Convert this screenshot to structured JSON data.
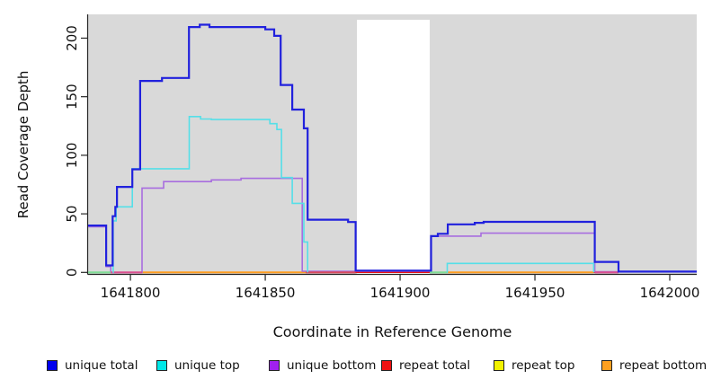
{
  "figure": {
    "background": "#ffffff",
    "panel_color": "#d9d9d9",
    "axis_color": "#262626",
    "text_color": "#111111"
  },
  "chart_data": {
    "type": "line",
    "subtype": "step-coverage",
    "title": "",
    "xlabel": "Coordinate in Reference Genome",
    "ylabel": "Read Coverage Depth",
    "xlim": [
      1641784.3,
      1642010
    ],
    "ylim": [
      -1.69,
      220.3
    ],
    "x_ticks": [
      1641800,
      1641850,
      1641900,
      1641950,
      1642000
    ],
    "y_ticks": [
      0,
      50,
      100,
      150,
      200
    ],
    "grid": false,
    "legend_position": "bottom",
    "gap_band": {
      "from": 1641884,
      "to": 1641911,
      "color": "#ffffff"
    },
    "series": [
      {
        "name": "repeat total",
        "color": "#ee1111",
        "width": 1.5,
        "segments": [
          [
            [
              1641784.3,
              0
            ],
            [
              1641981,
              0
            ]
          ]
        ]
      },
      {
        "name": "repeat top",
        "color": "#f2f200",
        "width": 1.5,
        "segments": [
          [
            [
              1641804.3,
              0
            ],
            [
              1641865,
              0
            ]
          ],
          [
            [
              1641917.3,
              0
            ],
            [
              1641971.8,
              0
            ]
          ]
        ]
      },
      {
        "name": "repeat bottom",
        "color": "#ff9d20",
        "width": 2,
        "segments": [
          [
            [
              1641804.3,
              0
            ],
            [
              1641865,
              0
            ]
          ],
          [
            [
              1641917.3,
              0
            ],
            [
              1641971.8,
              0
            ]
          ]
        ]
      },
      {
        "name": "unique bottom",
        "color": "#a86ddf",
        "width": 1.6,
        "segments": [
          [
            [
              1641784.3,
              39
            ],
            [
              1641791,
              5
            ],
            [
              1641792.7,
              0
            ],
            [
              1641804.3,
              72
            ],
            [
              1641812.3,
              77.5
            ],
            [
              1641830,
              79
            ],
            [
              1641841,
              80.3
            ],
            [
              1641863.7,
              1
            ],
            [
              1641911.5,
              31
            ],
            [
              1641930,
              33.5
            ],
            [
              1641972.2,
              0.5
            ],
            [
              1642010,
              0.5
            ]
          ]
        ]
      },
      {
        "name": "unique top",
        "color": "#55dfe8",
        "width": 1.6,
        "segments": [
          [
            [
              1641793.4,
              0
            ],
            [
              1641793.6,
              44
            ],
            [
              1641794.7,
              56
            ],
            [
              1641800.7,
              88.5
            ],
            [
              1641821.8,
              133
            ],
            [
              1641826,
              131
            ],
            [
              1641830,
              130.5
            ],
            [
              1641851.7,
              127
            ],
            [
              1641854.3,
              122
            ],
            [
              1641856,
              81
            ],
            [
              1641860,
              59
            ],
            [
              1641864.3,
              26
            ],
            [
              1641865.7,
              0
            ]
          ],
          [
            [
              1641917.3,
              0
            ],
            [
              1641917.5,
              7.7
            ],
            [
              1641971.8,
              0
            ]
          ]
        ]
      },
      {
        "name": "unique total",
        "color": "#2121dd",
        "width": 2.2,
        "segments": [
          [
            [
              1641784.3,
              40
            ],
            [
              1641791,
              6
            ],
            [
              1641793.4,
              48
            ],
            [
              1641794.4,
              56
            ],
            [
              1641795,
              73
            ],
            [
              1641800.7,
              88
            ],
            [
              1641803.6,
              163.5
            ],
            [
              1641811.7,
              166
            ],
            [
              1641821.7,
              209.5
            ],
            [
              1641825.7,
              211.5
            ],
            [
              1641829.3,
              209.5
            ],
            [
              1641850,
              207.5
            ],
            [
              1641853.3,
              202
            ],
            [
              1641855.7,
              160
            ],
            [
              1641860,
              139
            ],
            [
              1641864.3,
              123
            ],
            [
              1641865.7,
              45
            ],
            [
              1641880.7,
              43
            ],
            [
              1641883.5,
              1.5
            ],
            [
              1641911.5,
              31
            ],
            [
              1641914,
              33
            ],
            [
              1641917.7,
              41
            ],
            [
              1641927.7,
              42.3
            ],
            [
              1641931,
              43.2
            ],
            [
              1641972.2,
              9
            ],
            [
              1641981,
              0.7
            ],
            [
              1642010,
              0.7
            ]
          ]
        ]
      }
    ],
    "baseline_segments": [
      {
        "from": 1641784.3,
        "to": 1641792.7,
        "color": "#7fdc95"
      },
      {
        "from": 1641792.7,
        "to": 1641804.3,
        "color": "#da4f8f"
      },
      {
        "from": 1641865,
        "to": 1641883.5,
        "color": "#d84a5d"
      },
      {
        "from": 1641911,
        "to": 1641917.3,
        "color": "#7fdc95"
      },
      {
        "from": 1641972.2,
        "to": 1641981,
        "color": "#da4f8f"
      }
    ],
    "legend": [
      {
        "label": "unique total",
        "color": "#0000ee"
      },
      {
        "label": "unique top",
        "color": "#00e8e8"
      },
      {
        "label": "unique bottom",
        "color": "#a020f0"
      },
      {
        "label": "repeat total",
        "color": "#ee1111"
      },
      {
        "label": "repeat top",
        "color": "#f2f200"
      },
      {
        "label": "repeat bottom",
        "color": "#ffa020"
      }
    ]
  }
}
